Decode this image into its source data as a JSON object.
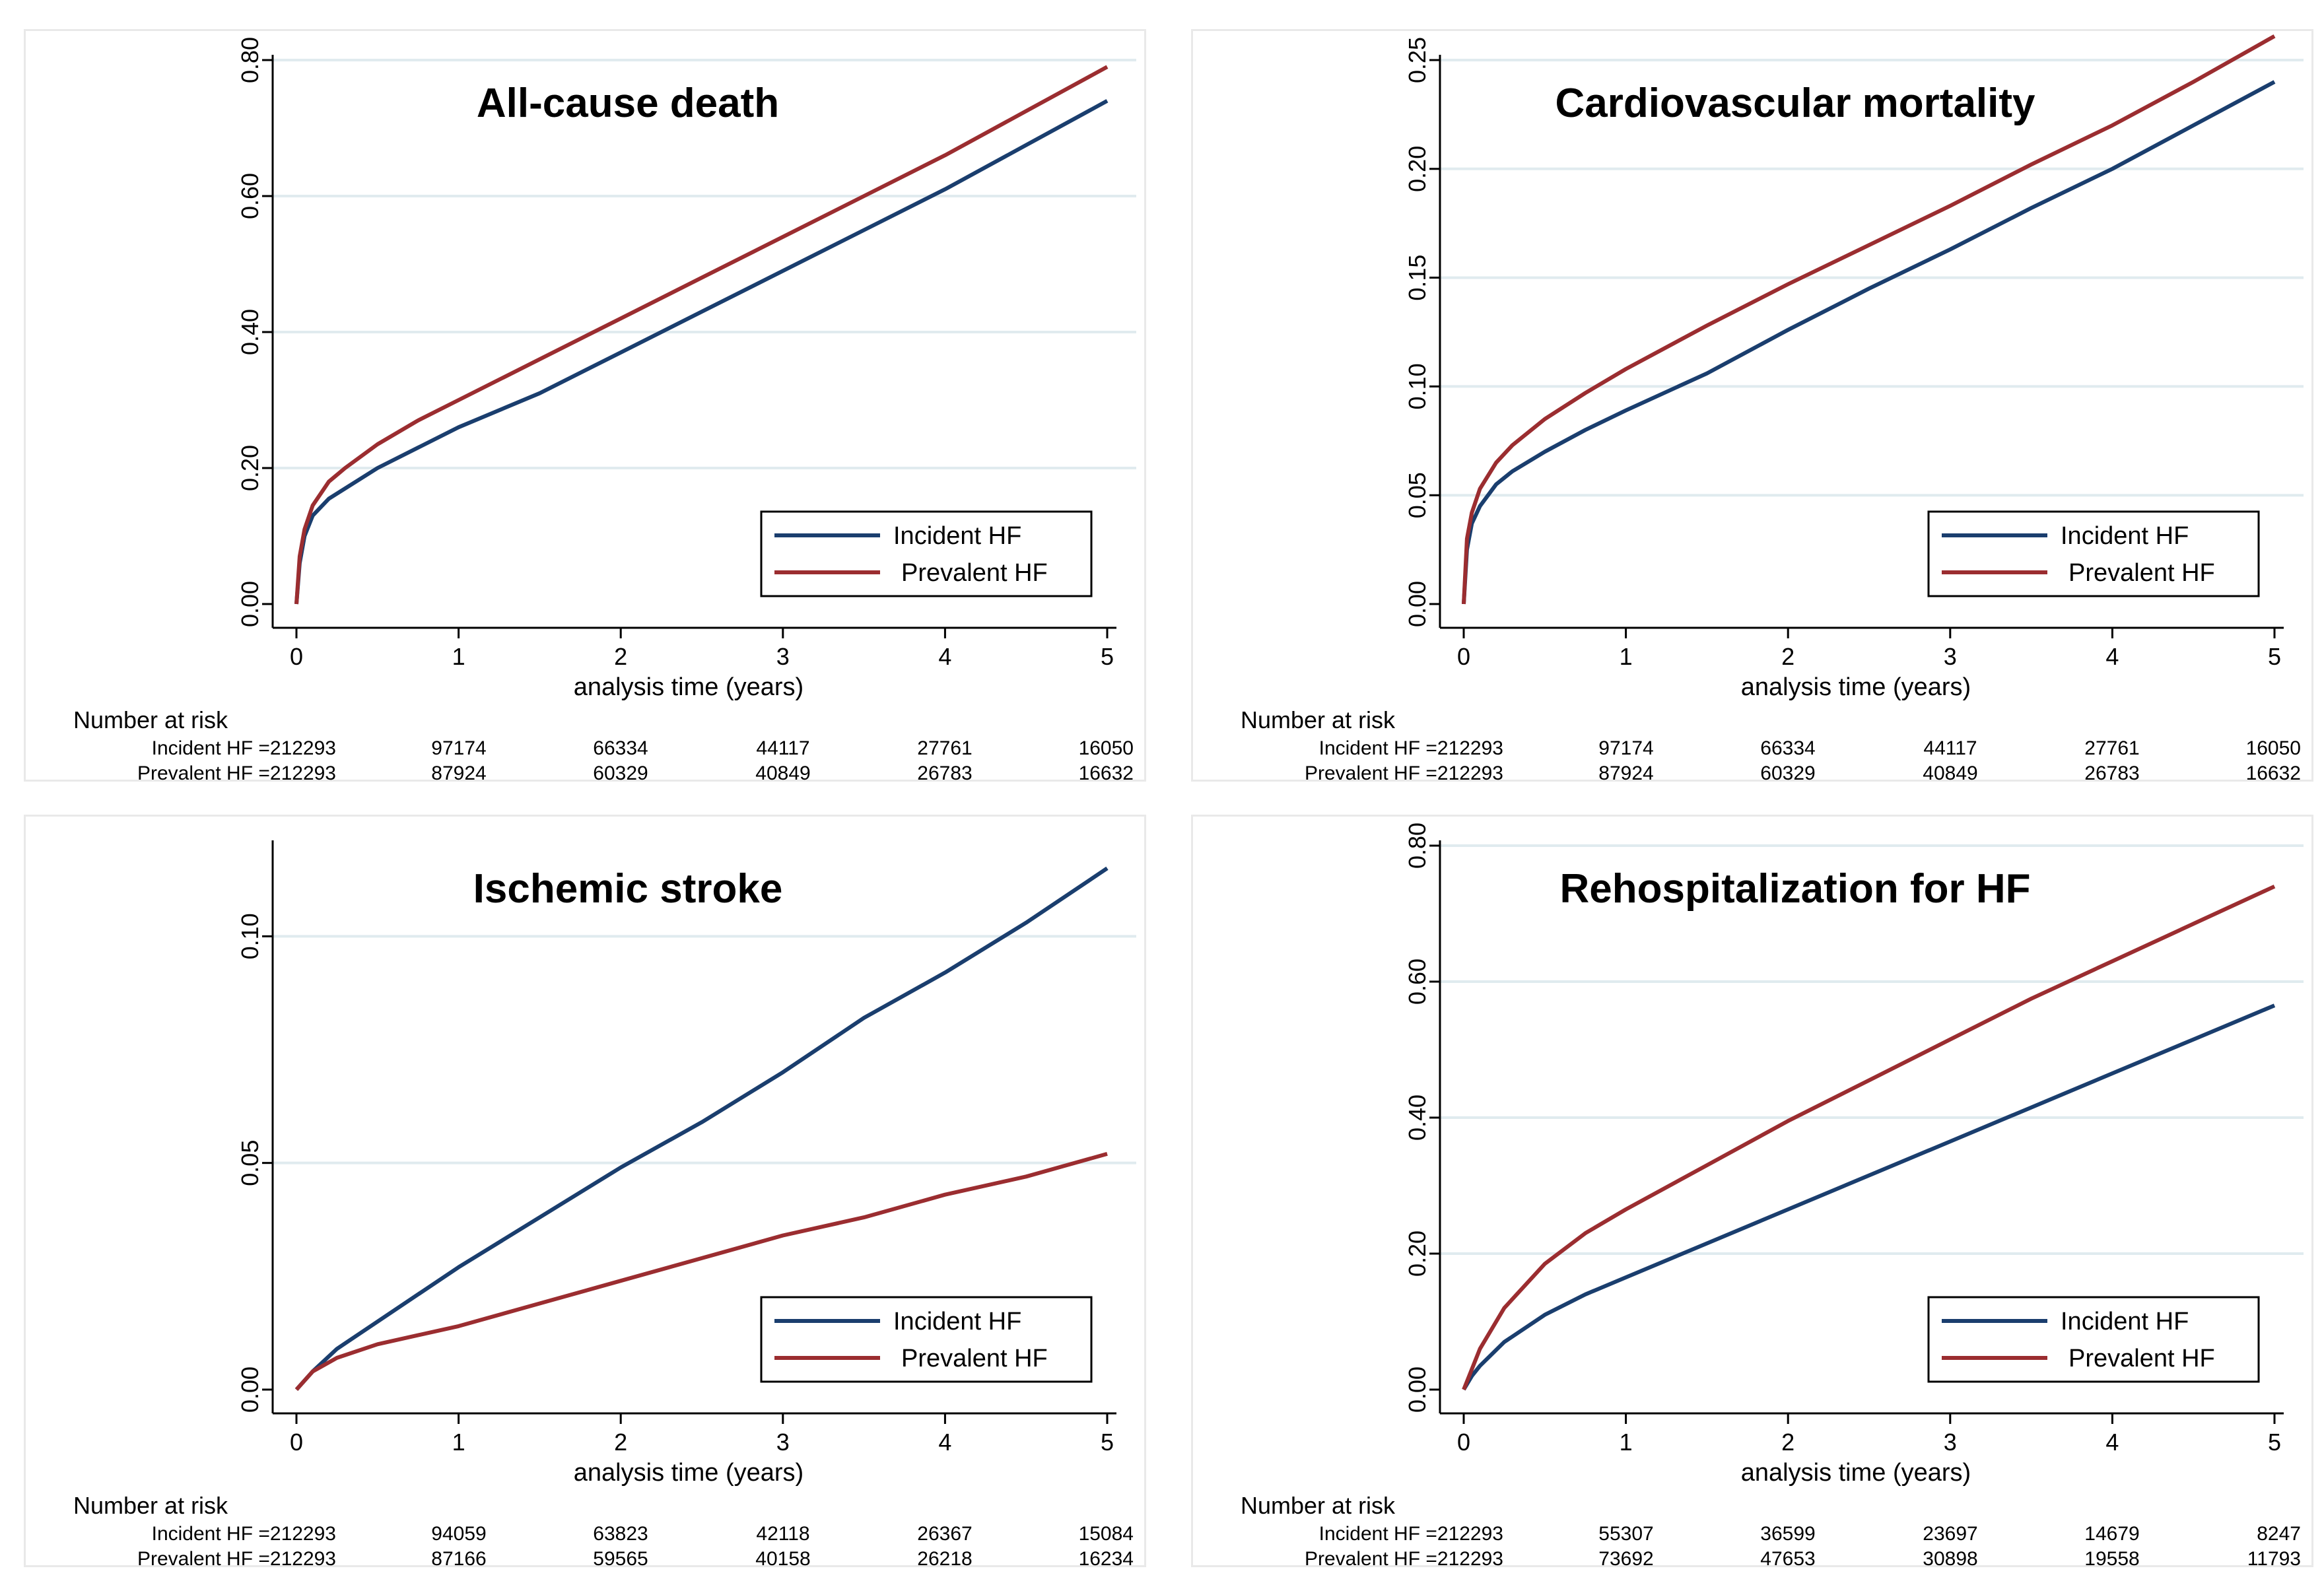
{
  "colors": {
    "incident": "#1a3e6e",
    "prevalent": "#9b2d30",
    "grid": "#e0ebef",
    "axis": "#000000"
  },
  "common": {
    "xlabel": "analysis time (years)",
    "risk_header": "Number at risk",
    "x_ticks": [
      "0",
      "1",
      "2",
      "3",
      "4",
      "5"
    ]
  },
  "chart_data": [
    {
      "type": "line",
      "title": "All-cause death",
      "xlabel": "analysis time (years)",
      "ylabel": "",
      "xlim": [
        0,
        5
      ],
      "ylim": [
        0,
        0.8
      ],
      "y_ticks": [
        0,
        0.2,
        0.4,
        0.6,
        0.8
      ],
      "y_tick_labels": [
        "0.00",
        "0.20",
        "0.40",
        "0.60",
        "0.80"
      ],
      "grid": true,
      "legend_position": "bottom-right",
      "series": [
        {
          "name": "Incident HF",
          "color": "#1a3e6e",
          "x": [
            0,
            0.02,
            0.05,
            0.1,
            0.2,
            0.3,
            0.5,
            0.75,
            1,
            1.5,
            2,
            2.5,
            3,
            3.5,
            4,
            4.5,
            5
          ],
          "y": [
            0,
            0.06,
            0.1,
            0.13,
            0.155,
            0.17,
            0.2,
            0.23,
            0.26,
            0.31,
            0.37,
            0.43,
            0.49,
            0.55,
            0.61,
            0.675,
            0.74
          ]
        },
        {
          "name": "Prevalent HF",
          "color": "#9b2d30",
          "x": [
            0,
            0.02,
            0.05,
            0.1,
            0.2,
            0.3,
            0.5,
            0.75,
            1,
            1.5,
            2,
            2.5,
            3,
            3.5,
            4,
            4.5,
            5
          ],
          "y": [
            0,
            0.07,
            0.11,
            0.145,
            0.18,
            0.2,
            0.235,
            0.27,
            0.3,
            0.36,
            0.42,
            0.48,
            0.54,
            0.6,
            0.66,
            0.725,
            0.79
          ]
        }
      ],
      "risk_table": [
        {
          "label": "Incident HF =212293",
          "values": [
            "97174",
            "66334",
            "44117",
            "27761",
            "16050"
          ]
        },
        {
          "label": "Prevalent HF =212293",
          "values": [
            "87924",
            "60329",
            "40849",
            "26783",
            "16632"
          ]
        }
      ]
    },
    {
      "type": "line",
      "title": "Cardiovascular mortality",
      "xlabel": "analysis time (years)",
      "ylabel": "",
      "xlim": [
        0,
        5
      ],
      "ylim": [
        0,
        0.25
      ],
      "y_ticks": [
        0,
        0.05,
        0.1,
        0.15,
        0.2,
        0.25
      ],
      "y_tick_labels": [
        "0.00",
        "0.05",
        "0.10",
        "0.15",
        "0.20",
        "0.25"
      ],
      "grid": true,
      "legend_position": "bottom-right",
      "series": [
        {
          "name": "Incident HF",
          "color": "#1a3e6e",
          "x": [
            0,
            0.02,
            0.05,
            0.1,
            0.2,
            0.3,
            0.5,
            0.75,
            1,
            1.5,
            2,
            2.5,
            3,
            3.5,
            4,
            4.5,
            5
          ],
          "y": [
            0,
            0.025,
            0.037,
            0.045,
            0.055,
            0.061,
            0.07,
            0.08,
            0.089,
            0.106,
            0.126,
            0.145,
            0.163,
            0.182,
            0.2,
            0.22,
            0.24
          ]
        },
        {
          "name": "Prevalent HF",
          "color": "#9b2d30",
          "x": [
            0,
            0.02,
            0.05,
            0.1,
            0.2,
            0.3,
            0.5,
            0.75,
            1,
            1.5,
            2,
            2.5,
            3,
            3.5,
            4,
            4.5,
            5
          ],
          "y": [
            0,
            0.03,
            0.042,
            0.053,
            0.065,
            0.073,
            0.085,
            0.097,
            0.108,
            0.128,
            0.147,
            0.165,
            0.183,
            0.202,
            0.22,
            0.24,
            0.261
          ]
        }
      ],
      "risk_table": [
        {
          "label": "Incident HF =212293",
          "values": [
            "97174",
            "66334",
            "44117",
            "27761",
            "16050"
          ]
        },
        {
          "label": "Prevalent HF =212293",
          "values": [
            "87924",
            "60329",
            "40849",
            "26783",
            "16632"
          ]
        }
      ]
    },
    {
      "type": "line",
      "title": "Ischemic stroke",
      "xlabel": "analysis time (years)",
      "ylabel": "",
      "xlim": [
        0,
        5
      ],
      "ylim": [
        0,
        0.12
      ],
      "y_ticks": [
        0,
        0.05,
        0.1
      ],
      "y_tick_labels": [
        "0.00",
        "0.05",
        "0.10"
      ],
      "grid": true,
      "legend_position": "bottom-right",
      "series": [
        {
          "name": "Incident HF",
          "color": "#1a3e6e",
          "x": [
            0,
            0.1,
            0.25,
            0.5,
            0.75,
            1,
            1.5,
            2,
            2.5,
            3,
            3.5,
            4,
            4.5,
            5
          ],
          "y": [
            0,
            0.004,
            0.009,
            0.015,
            0.021,
            0.027,
            0.038,
            0.049,
            0.059,
            0.07,
            0.082,
            0.092,
            0.103,
            0.115
          ]
        },
        {
          "name": "Prevalent HF",
          "color": "#9b2d30",
          "x": [
            0,
            0.1,
            0.25,
            0.5,
            0.75,
            1,
            1.5,
            2,
            2.5,
            3,
            3.5,
            4,
            4.5,
            5
          ],
          "y": [
            0,
            0.004,
            0.007,
            0.01,
            0.012,
            0.014,
            0.019,
            0.024,
            0.029,
            0.034,
            0.038,
            0.043,
            0.047,
            0.052
          ]
        }
      ],
      "risk_table": [
        {
          "label": "Incident HF =212293",
          "values": [
            "94059",
            "63823",
            "42118",
            "26367",
            "15084"
          ]
        },
        {
          "label": "Prevalent HF =212293",
          "values": [
            "87166",
            "59565",
            "40158",
            "26218",
            "16234"
          ]
        }
      ]
    },
    {
      "type": "line",
      "title": "Rehospitalization for HF",
      "xlabel": "analysis time (years)",
      "ylabel": "",
      "xlim": [
        0,
        5
      ],
      "ylim": [
        0,
        0.8
      ],
      "y_ticks": [
        0,
        0.2,
        0.4,
        0.6,
        0.8
      ],
      "y_tick_labels": [
        "0.00",
        "0.20",
        "0.40",
        "0.60",
        "0.80"
      ],
      "grid": true,
      "legend_position": "bottom-right",
      "series": [
        {
          "name": "Incident HF",
          "color": "#1a3e6e",
          "x": [
            0,
            0.05,
            0.1,
            0.25,
            0.5,
            0.75,
            1,
            1.5,
            2,
            2.5,
            3,
            3.5,
            4,
            4.5,
            5
          ],
          "y": [
            0,
            0.02,
            0.035,
            0.07,
            0.11,
            0.14,
            0.165,
            0.215,
            0.265,
            0.315,
            0.365,
            0.415,
            0.465,
            0.515,
            0.565
          ]
        },
        {
          "name": "Prevalent HF",
          "color": "#9b2d30",
          "x": [
            0,
            0.05,
            0.1,
            0.25,
            0.5,
            0.75,
            1,
            1.5,
            2,
            2.5,
            3,
            3.5,
            4,
            4.5,
            5
          ],
          "y": [
            0,
            0.03,
            0.06,
            0.12,
            0.185,
            0.23,
            0.265,
            0.33,
            0.395,
            0.455,
            0.515,
            0.575,
            0.63,
            0.685,
            0.74
          ]
        }
      ],
      "risk_table": [
        {
          "label": "Incident HF =212293",
          "values": [
            "55307",
            "36599",
            "23697",
            "14679",
            "8247"
          ]
        },
        {
          "label": "Prevalent HF =212293",
          "values": [
            "73692",
            "47653",
            "30898",
            "19558",
            "11793"
          ]
        }
      ]
    }
  ]
}
